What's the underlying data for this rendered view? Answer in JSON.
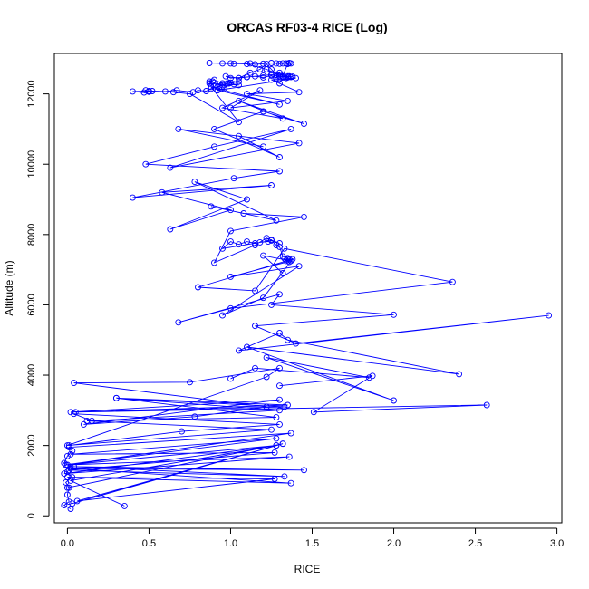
{
  "chart_data": {
    "type": "line",
    "title": "ORCAS RF03-4 RICE (Log)",
    "xlabel": "RICE",
    "ylabel": "Altitude (m)",
    "xlim": [
      -0.08,
      3.03
    ],
    "ylim": [
      -200,
      13150
    ],
    "xticks": [
      0.0,
      0.5,
      1.0,
      1.5,
      2.0,
      2.5,
      3.0
    ],
    "xtick_labels": [
      "0.0",
      "0.5",
      "1.0",
      "1.5",
      "2.0",
      "2.5",
      "3.0"
    ],
    "yticks": [
      0,
      2000,
      4000,
      6000,
      8000,
      10000,
      12000
    ],
    "ytick_labels": [
      "0",
      "2000",
      "4000",
      "6000",
      "8000",
      "10000",
      "12000"
    ],
    "grid": false,
    "marker": "open-circle",
    "color": "#0000ff",
    "series": [
      {
        "x": [
          0.02,
          -0.02,
          0.01,
          0.0,
          0.01,
          -0.01,
          0.03,
          0.0,
          0.02,
          -0.02,
          0.0,
          0.03,
          0.01,
          1.37,
          -0.01,
          1.28,
          0.02,
          1.27,
          0.01,
          1.33,
          0.04,
          1.45,
          0.02,
          1.37,
          0.0,
          1.27,
          0.06,
          1.32,
          0.0,
          1.32,
          0.03,
          1.28,
          -0.02,
          1.36,
          0.0,
          1.28,
          0.02,
          0.35
        ],
        "y": [
          200,
          300,
          400,
          600,
          800,
          950,
          1100,
          1250,
          1400,
          1500,
          1700,
          1850,
          1950,
          2350,
          1450,
          2200,
          1750,
          1800,
          1300,
          1120,
          1400,
          1300,
          1350,
          930,
          1100,
          1050,
          420,
          2050,
          800,
          2050,
          350,
          2000,
          1200,
          1680,
          1450,
          2000,
          1000,
          280
        ]
      },
      {
        "x": [
          0.01,
          0.7,
          1.3,
          0.04,
          0.15,
          1.3,
          0.3,
          1.33,
          0.02,
          1.3,
          0.1,
          0.78,
          1.22,
          0.04,
          0.75,
          1.3,
          1.22,
          0.0,
          1.25,
          0.12,
          1.28,
          0.3,
          1.35,
          0.05,
          2.57,
          1.51,
          1.87,
          1.3
        ],
        "y": [
          2000,
          2400,
          2600,
          2900,
          2700,
          3000,
          3350,
          3100,
          2950,
          3300,
          2600,
          2820,
          3100,
          3780,
          3800,
          4200,
          3950,
          2000,
          2450,
          2700,
          2800,
          3350,
          3150,
          2950,
          3150,
          2950,
          3980,
          3700
        ]
      },
      {
        "x": [
          1.0,
          1.15,
          1.85,
          1.22,
          2.0,
          1.1,
          2.4,
          1.35,
          1.3,
          1.05,
          2.95,
          1.4,
          1.15,
          2.0,
          1.25,
          1.3,
          0.68,
          1.0,
          2.36,
          1.33,
          1.15,
          0.8,
          1.38,
          1.2,
          0.95,
          1.42,
          1.0,
          1.37,
          1.2,
          1.32
        ],
        "y": [
          3900,
          4200,
          3930,
          4500,
          3280,
          4800,
          4030,
          5000,
          5200,
          4700,
          5700,
          4900,
          5400,
          5720,
          6000,
          6300,
          5500,
          5900,
          6650,
          7600,
          6400,
          6500,
          7300,
          6200,
          5700,
          7100,
          6800,
          7250,
          7400,
          6900
        ]
      },
      {
        "x": [
          1.35,
          1.36,
          1.34,
          1.33,
          1.36,
          1.35,
          1.32,
          1.3,
          1.28,
          1.25,
          1.23,
          1.18,
          1.15,
          1.1,
          1.05,
          1.0,
          0.95,
          1.25,
          1.3,
          1.22,
          1.15,
          0.9,
          1.0,
          1.45,
          1.08,
          0.88,
          1.28,
          0.78,
          1.1,
          0.63,
          1.0,
          0.58,
          1.25,
          0.4,
          1.02,
          1.3,
          0.48,
          0.9,
          1.37,
          0.63,
          1.42,
          0.68,
          1.2
        ],
        "y": [
          7330,
          7280,
          7250,
          7320,
          7220,
          7300,
          7380,
          7650,
          7700,
          7850,
          7800,
          7780,
          7750,
          7800,
          7720,
          7800,
          7600,
          7830,
          7750,
          7900,
          7700,
          7200,
          8100,
          8500,
          8600,
          8800,
          8400,
          9500,
          9000,
          8150,
          8700,
          9200,
          9400,
          9050,
          9600,
          9800,
          10000,
          10500,
          11000,
          9900,
          10600,
          11000,
          10500
        ]
      },
      {
        "x": [
          1.05,
          1.3,
          0.9,
          1.2,
          1.45,
          1.05,
          1.32,
          0.95,
          1.18,
          1.0,
          1.35,
          1.1,
          1.42,
          1.25,
          1.4,
          0.92,
          1.3,
          0.88,
          1.05,
          0.75,
          0.65,
          0.5,
          0.4,
          0.47,
          0.48,
          0.5,
          0.52,
          0.6,
          0.67,
          0.77,
          0.8,
          0.85,
          0.88,
          0.92,
          0.95,
          0.98,
          1.0,
          1.02,
          1.05,
          0.87,
          0.89,
          0.91,
          0.93,
          0.95,
          0.9,
          0.87,
          0.92,
          0.96,
          0.99,
          1.05
        ],
        "y": [
          10800,
          10200,
          11000,
          11500,
          11150,
          11800,
          11300,
          11600,
          12100,
          11600,
          11800,
          12000,
          12050,
          12400,
          12450,
          12100,
          11700,
          12200,
          11200,
          12000,
          12050,
          12080,
          12070,
          12040,
          12100,
          12060,
          12080,
          12070,
          12100,
          12050,
          12100,
          12080,
          12150,
          12200,
          12250,
          12300,
          12320,
          12280,
          12250,
          12300,
          12350,
          12250,
          12200,
          12300,
          12400,
          12350,
          12100,
          12150,
          12300,
          12350
        ]
      },
      {
        "x": [
          1.05,
          1.1,
          1.15,
          1.2,
          1.25,
          1.28,
          1.3,
          1.32,
          1.35,
          1.36,
          1.37,
          1.38,
          1.3,
          1.25,
          1.2,
          1.1,
          1.0,
          0.97,
          1.05,
          1.12,
          1.18,
          1.22,
          1.25,
          1.28,
          1.3,
          1.32,
          1.34,
          1.35,
          1.3,
          1.22,
          1.1,
          1.0,
          0.87,
          0.95,
          1.02,
          1.12,
          1.15,
          1.2,
          1.25,
          1.28,
          1.3,
          1.32,
          1.34,
          1.35,
          1.36,
          1.37,
          1.35,
          1.3
        ],
        "y": [
          12450,
          12480,
          12500,
          12470,
          12520,
          12450,
          12500,
          12480,
          12470,
          12500,
          12480,
          12490,
          12500,
          12550,
          12520,
          12480,
          12450,
          12500,
          12450,
          12600,
          12700,
          12850,
          12700,
          12550,
          12600,
          12500,
          12450,
          12500,
          12550,
          12700,
          12850,
          12870,
          12880,
          12870,
          12860,
          12870,
          12840,
          12860,
          12880,
          12870,
          12860,
          12870,
          12870,
          12860,
          12880,
          12870,
          12850,
          12300
        ]
      }
    ]
  }
}
